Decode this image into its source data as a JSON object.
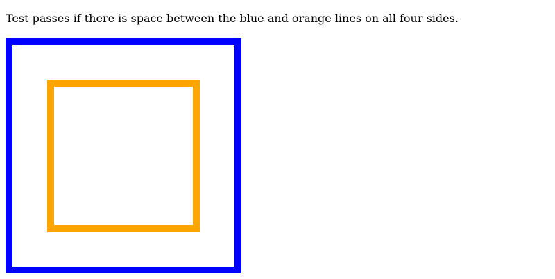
{
  "instruction": "Test passes if there is space between the blue and orange lines on all four sides.",
  "colors": {
    "outer_border": "#0000ff",
    "inner_border": "#ffa500",
    "background": "#ffffff",
    "text": "#000000"
  }
}
